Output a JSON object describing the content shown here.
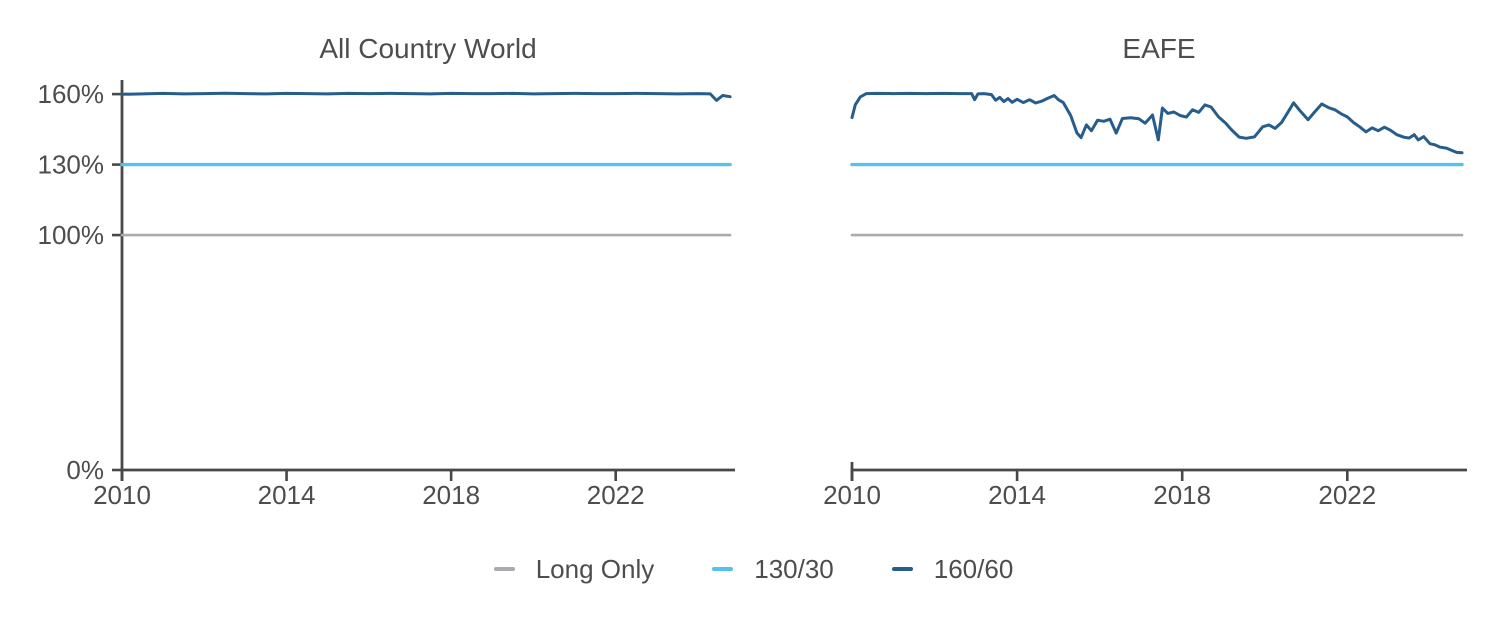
{
  "colors": {
    "background": "#ffffff",
    "axis": "#48484a",
    "text": "#4d4d4d",
    "long_only": "#a9abae",
    "ratio_130_30": "#55c3e9",
    "ratio_160_60": "#265d8c"
  },
  "legend": {
    "items": [
      {
        "label": "Long Only",
        "color": "#a9abae"
      },
      {
        "label": "130/30",
        "color": "#55c3e9"
      },
      {
        "label": "160/60",
        "color": "#265d8c"
      }
    ]
  },
  "chart_data": [
    {
      "type": "line",
      "title": "All Country World",
      "xlabel": "",
      "ylabel": "",
      "xlim": [
        2010,
        2024.9
      ],
      "ylim": [
        0,
        166
      ],
      "grid": false,
      "legend_position": "bottom",
      "x_ticks": [
        {
          "value": 2010,
          "label": "2010"
        },
        {
          "value": 2014,
          "label": "2014"
        },
        {
          "value": 2018,
          "label": "2018"
        },
        {
          "value": 2022,
          "label": "2022"
        }
      ],
      "y_ticks": [
        {
          "value": 0,
          "label": "0%"
        },
        {
          "value": 100,
          "label": "100%"
        },
        {
          "value": 130,
          "label": "130%"
        },
        {
          "value": 160,
          "label": "160%"
        }
      ],
      "show_y_axis": true,
      "series": [
        {
          "name": "Long Only",
          "color": "#a9abae",
          "points": [
            [
              2010,
              100
            ],
            [
              2024.78,
              100
            ]
          ]
        },
        {
          "name": "130/30",
          "color": "#55c3e9",
          "points": [
            [
              2010,
              130
            ],
            [
              2024.78,
              130
            ]
          ]
        },
        {
          "name": "160/60",
          "color": "#265d8c",
          "points": [
            [
              2010.0,
              159.9
            ],
            [
              2010.5,
              160.1
            ],
            [
              2011.0,
              160.3
            ],
            [
              2011.5,
              160.1
            ],
            [
              2012.0,
              160.2
            ],
            [
              2012.5,
              160.4
            ],
            [
              2013.0,
              160.2
            ],
            [
              2013.5,
              160.1
            ],
            [
              2014.0,
              160.3
            ],
            [
              2014.5,
              160.2
            ],
            [
              2015.0,
              160.1
            ],
            [
              2015.5,
              160.3
            ],
            [
              2016.0,
              160.2
            ],
            [
              2016.5,
              160.3
            ],
            [
              2017.0,
              160.2
            ],
            [
              2017.5,
              160.1
            ],
            [
              2018.0,
              160.3
            ],
            [
              2018.5,
              160.2
            ],
            [
              2019.0,
              160.2
            ],
            [
              2019.5,
              160.3
            ],
            [
              2020.0,
              160.1
            ],
            [
              2020.5,
              160.2
            ],
            [
              2021.0,
              160.3
            ],
            [
              2021.5,
              160.2
            ],
            [
              2022.0,
              160.2
            ],
            [
              2022.5,
              160.3
            ],
            [
              2023.0,
              160.2
            ],
            [
              2023.5,
              160.1
            ],
            [
              2024.0,
              160.2
            ],
            [
              2024.3,
              160.1
            ],
            [
              2024.45,
              157.3
            ],
            [
              2024.6,
              159.4
            ],
            [
              2024.78,
              158.9
            ]
          ]
        }
      ]
    },
    {
      "type": "line",
      "title": "EAFE",
      "xlabel": "",
      "ylabel": "",
      "xlim": [
        2010,
        2024.9
      ],
      "ylim": [
        0,
        166
      ],
      "grid": false,
      "legend_position": "bottom",
      "x_ticks": [
        {
          "value": 2010,
          "label": "2010"
        },
        {
          "value": 2014,
          "label": "2014"
        },
        {
          "value": 2018,
          "label": "2018"
        },
        {
          "value": 2022,
          "label": "2022"
        }
      ],
      "y_ticks": [
        {
          "value": 0,
          "label": "0%"
        },
        {
          "value": 100,
          "label": "100%"
        },
        {
          "value": 130,
          "label": "130%"
        },
        {
          "value": 160,
          "label": "160%"
        }
      ],
      "show_y_axis": false,
      "series": [
        {
          "name": "Long Only",
          "color": "#a9abae",
          "points": [
            [
              2010,
              100
            ],
            [
              2024.78,
              100
            ]
          ]
        },
        {
          "name": "130/30",
          "color": "#55c3e9",
          "points": [
            [
              2010,
              130
            ],
            [
              2024.78,
              130
            ]
          ]
        },
        {
          "name": "160/60",
          "color": "#265d8c",
          "points": [
            [
              2010.0,
              150.0
            ],
            [
              2010.08,
              155.5
            ],
            [
              2010.2,
              158.8
            ],
            [
              2010.35,
              160.2
            ],
            [
              2010.6,
              160.3
            ],
            [
              2011.0,
              160.2
            ],
            [
              2011.4,
              160.3
            ],
            [
              2011.8,
              160.2
            ],
            [
              2012.2,
              160.3
            ],
            [
              2012.6,
              160.2
            ],
            [
              2012.9,
              160.2
            ],
            [
              2012.97,
              157.6
            ],
            [
              2013.05,
              160.1
            ],
            [
              2013.2,
              160.2
            ],
            [
              2013.38,
              159.8
            ],
            [
              2013.48,
              157.4
            ],
            [
              2013.58,
              158.6
            ],
            [
              2013.68,
              156.8
            ],
            [
              2013.78,
              158.1
            ],
            [
              2013.88,
              156.5
            ],
            [
              2014.0,
              157.8
            ],
            [
              2014.15,
              156.4
            ],
            [
              2014.3,
              157.6
            ],
            [
              2014.45,
              156.2
            ],
            [
              2014.6,
              157.0
            ],
            [
              2014.75,
              158.3
            ],
            [
              2014.9,
              159.4
            ],
            [
              2015.0,
              157.6
            ],
            [
              2015.12,
              156.4
            ],
            [
              2015.3,
              150.8
            ],
            [
              2015.45,
              143.5
            ],
            [
              2015.55,
              141.5
            ],
            [
              2015.68,
              146.9
            ],
            [
              2015.8,
              144.4
            ],
            [
              2015.95,
              148.9
            ],
            [
              2016.1,
              148.4
            ],
            [
              2016.25,
              149.3
            ],
            [
              2016.4,
              143.4
            ],
            [
              2016.55,
              149.6
            ],
            [
              2016.75,
              149.9
            ],
            [
              2016.95,
              149.5
            ],
            [
              2017.1,
              147.6
            ],
            [
              2017.28,
              151.1
            ],
            [
              2017.42,
              140.5
            ],
            [
              2017.52,
              154.1
            ],
            [
              2017.65,
              151.8
            ],
            [
              2017.8,
              152.4
            ],
            [
              2017.95,
              150.9
            ],
            [
              2018.1,
              150.2
            ],
            [
              2018.25,
              153.3
            ],
            [
              2018.4,
              152.2
            ],
            [
              2018.55,
              155.4
            ],
            [
              2018.7,
              154.5
            ],
            [
              2018.88,
              150.3
            ],
            [
              2019.05,
              147.7
            ],
            [
              2019.2,
              144.7
            ],
            [
              2019.38,
              141.7
            ],
            [
              2019.55,
              141.2
            ],
            [
              2019.75,
              141.8
            ],
            [
              2019.95,
              146.1
            ],
            [
              2020.1,
              146.9
            ],
            [
              2020.25,
              145.4
            ],
            [
              2020.4,
              147.8
            ],
            [
              2020.55,
              152.0
            ],
            [
              2020.7,
              156.3
            ],
            [
              2020.85,
              153.0
            ],
            [
              2021.05,
              149.1
            ],
            [
              2021.2,
              152.2
            ],
            [
              2021.38,
              155.8
            ],
            [
              2021.55,
              154.2
            ],
            [
              2021.7,
              153.3
            ],
            [
              2021.85,
              151.6
            ],
            [
              2022.0,
              150.3
            ],
            [
              2022.15,
              147.9
            ],
            [
              2022.3,
              146.1
            ],
            [
              2022.45,
              143.9
            ],
            [
              2022.6,
              145.6
            ],
            [
              2022.75,
              144.4
            ],
            [
              2022.9,
              145.9
            ],
            [
              2023.05,
              144.6
            ],
            [
              2023.2,
              142.7
            ],
            [
              2023.38,
              141.6
            ],
            [
              2023.5,
              141.3
            ],
            [
              2023.62,
              142.7
            ],
            [
              2023.72,
              140.5
            ],
            [
              2023.85,
              141.9
            ],
            [
              2024.0,
              138.9
            ],
            [
              2024.12,
              138.4
            ],
            [
              2024.25,
              137.4
            ],
            [
              2024.4,
              137.0
            ],
            [
              2024.55,
              135.9
            ],
            [
              2024.65,
              135.2
            ],
            [
              2024.78,
              135.0
            ]
          ]
        }
      ]
    }
  ]
}
